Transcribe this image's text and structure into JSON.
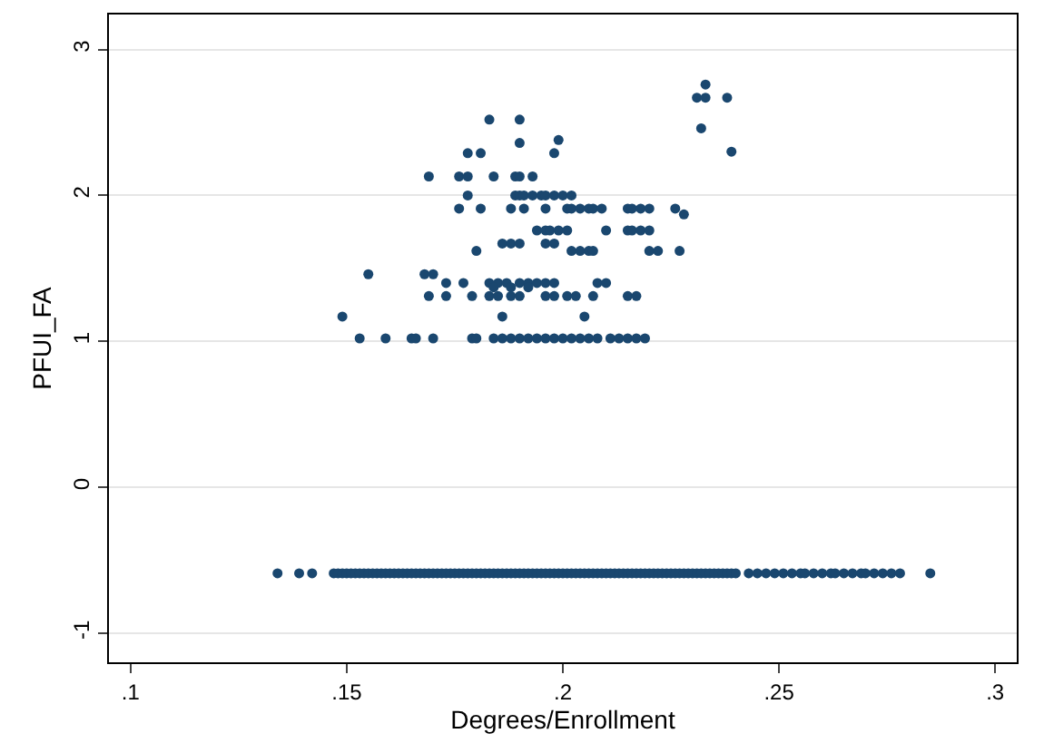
{
  "chart_data": {
    "type": "scatter",
    "xlabel": "Degrees/Enrollment",
    "ylabel": "PFUI_FA",
    "xlim": [
      0.095,
      0.305
    ],
    "ylim": [
      -1.2,
      3.24
    ],
    "xticks": [
      {
        "value": 0.1,
        "label": ".1"
      },
      {
        "value": 0.15,
        "label": ".15"
      },
      {
        "value": 0.2,
        "label": ".2"
      },
      {
        "value": 0.25,
        "label": ".25"
      },
      {
        "value": 0.3,
        "label": ".3"
      }
    ],
    "yticks": [
      -1,
      0,
      1,
      2,
      3
    ],
    "grid": "y",
    "marker": "circle",
    "series": [
      {
        "color": "#1a476f",
        "x": [
          0.183,
          0.19,
          0.178,
          0.181,
          0.198,
          0.239,
          0.19,
          0.199,
          0.233,
          0.231,
          0.233,
          0.238,
          0.232,
          0.169,
          0.176,
          0.178,
          0.184,
          0.189,
          0.19,
          0.193,
          0.178,
          0.189,
          0.19,
          0.191,
          0.193,
          0.195,
          0.196,
          0.198,
          0.2,
          0.202,
          0.176,
          0.181,
          0.188,
          0.191,
          0.196,
          0.201,
          0.202,
          0.204,
          0.206,
          0.207,
          0.209,
          0.215,
          0.216,
          0.218,
          0.22,
          0.226,
          0.228,
          0.194,
          0.196,
          0.197,
          0.199,
          0.201,
          0.21,
          0.215,
          0.216,
          0.218,
          0.22,
          0.186,
          0.188,
          0.19,
          0.196,
          0.198,
          0.18,
          0.202,
          0.204,
          0.206,
          0.207,
          0.22,
          0.222,
          0.227,
          0.155,
          0.168,
          0.17,
          0.173,
          0.177,
          0.183,
          0.185,
          0.187,
          0.19,
          0.192,
          0.194,
          0.196,
          0.198,
          0.208,
          0.21,
          0.184,
          0.188,
          0.192,
          0.169,
          0.173,
          0.179,
          0.183,
          0.185,
          0.188,
          0.19,
          0.196,
          0.198,
          0.201,
          0.203,
          0.207,
          0.215,
          0.217,
          0.149,
          0.186,
          0.205,
          0.153,
          0.159,
          0.165,
          0.166,
          0.17,
          0.179,
          0.18,
          0.184,
          0.186,
          0.188,
          0.19,
          0.192,
          0.194,
          0.196,
          0.198,
          0.2,
          0.202,
          0.204,
          0.206,
          0.208,
          0.211,
          0.213,
          0.215,
          0.217,
          0.219,
          0.134,
          0.139,
          0.142,
          0.147,
          0.148,
          0.149,
          0.15,
          0.151,
          0.152,
          0.153,
          0.154,
          0.155,
          0.156,
          0.157,
          0.158,
          0.159,
          0.16,
          0.161,
          0.162,
          0.163,
          0.164,
          0.165,
          0.166,
          0.167,
          0.168,
          0.169,
          0.17,
          0.171,
          0.172,
          0.173,
          0.174,
          0.175,
          0.176,
          0.177,
          0.178,
          0.179,
          0.18,
          0.181,
          0.182,
          0.183,
          0.184,
          0.185,
          0.186,
          0.187,
          0.188,
          0.189,
          0.19,
          0.191,
          0.192,
          0.193,
          0.194,
          0.195,
          0.196,
          0.197,
          0.198,
          0.199,
          0.2,
          0.201,
          0.202,
          0.203,
          0.204,
          0.205,
          0.206,
          0.207,
          0.208,
          0.209,
          0.21,
          0.211,
          0.212,
          0.213,
          0.214,
          0.215,
          0.216,
          0.217,
          0.218,
          0.219,
          0.22,
          0.221,
          0.222,
          0.223,
          0.224,
          0.225,
          0.226,
          0.227,
          0.228,
          0.229,
          0.23,
          0.231,
          0.232,
          0.233,
          0.234,
          0.235,
          0.236,
          0.237,
          0.238,
          0.239,
          0.24,
          0.243,
          0.245,
          0.247,
          0.249,
          0.251,
          0.253,
          0.255,
          0.256,
          0.258,
          0.26,
          0.262,
          0.263,
          0.265,
          0.267,
          0.269,
          0.27,
          0.272,
          0.274,
          0.276,
          0.278,
          0.285
        ],
        "values": [
          2.52,
          2.52,
          2.29,
          2.29,
          2.29,
          2.3,
          2.36,
          2.38,
          2.76,
          2.67,
          2.67,
          2.67,
          2.46,
          2.13,
          2.13,
          2.13,
          2.13,
          2.13,
          2.13,
          2.13,
          2.0,
          2.0,
          2.0,
          2.0,
          2.0,
          2.0,
          2.0,
          2.0,
          2.0,
          2.0,
          1.91,
          1.91,
          1.91,
          1.91,
          1.91,
          1.91,
          1.91,
          1.91,
          1.91,
          1.91,
          1.91,
          1.91,
          1.91,
          1.91,
          1.91,
          1.91,
          1.87,
          1.76,
          1.76,
          1.76,
          1.76,
          1.76,
          1.76,
          1.76,
          1.76,
          1.76,
          1.76,
          1.67,
          1.67,
          1.67,
          1.67,
          1.67,
          1.62,
          1.62,
          1.62,
          1.62,
          1.62,
          1.62,
          1.62,
          1.62,
          1.46,
          1.46,
          1.46,
          1.4,
          1.4,
          1.4,
          1.4,
          1.4,
          1.4,
          1.4,
          1.4,
          1.4,
          1.4,
          1.4,
          1.4,
          1.37,
          1.37,
          1.37,
          1.31,
          1.31,
          1.31,
          1.31,
          1.31,
          1.31,
          1.31,
          1.31,
          1.31,
          1.31,
          1.31,
          1.31,
          1.31,
          1.31,
          1.17,
          1.17,
          1.17,
          1.02,
          1.02,
          1.02,
          1.02,
          1.02,
          1.02,
          1.02,
          1.02,
          1.02,
          1.02,
          1.02,
          1.02,
          1.02,
          1.02,
          1.02,
          1.02,
          1.02,
          1.02,
          1.02,
          1.02,
          1.02,
          1.02,
          1.02,
          1.02,
          1.02,
          -0.59,
          -0.59,
          -0.59,
          -0.59,
          -0.59,
          -0.59,
          -0.59,
          -0.59,
          -0.59,
          -0.59,
          -0.59,
          -0.59,
          -0.59,
          -0.59,
          -0.59,
          -0.59,
          -0.59,
          -0.59,
          -0.59,
          -0.59,
          -0.59,
          -0.59,
          -0.59,
          -0.59,
          -0.59,
          -0.59,
          -0.59,
          -0.59,
          -0.59,
          -0.59,
          -0.59,
          -0.59,
          -0.59,
          -0.59,
          -0.59,
          -0.59,
          -0.59,
          -0.59,
          -0.59,
          -0.59,
          -0.59,
          -0.59,
          -0.59,
          -0.59,
          -0.59,
          -0.59,
          -0.59,
          -0.59,
          -0.59,
          -0.59,
          -0.59,
          -0.59,
          -0.59,
          -0.59,
          -0.59,
          -0.59,
          -0.59,
          -0.59,
          -0.59,
          -0.59,
          -0.59,
          -0.59,
          -0.59,
          -0.59,
          -0.59,
          -0.59,
          -0.59,
          -0.59,
          -0.59,
          -0.59,
          -0.59,
          -0.59,
          -0.59,
          -0.59,
          -0.59,
          -0.59,
          -0.59,
          -0.59,
          -0.59,
          -0.59,
          -0.59,
          -0.59,
          -0.59,
          -0.59,
          -0.59,
          -0.59,
          -0.59,
          -0.59,
          -0.59,
          -0.59,
          -0.59,
          -0.59,
          -0.59,
          -0.59,
          -0.59,
          -0.59,
          -0.59,
          -0.59,
          -0.59,
          -0.59,
          -0.59,
          -0.59,
          -0.59,
          -0.59,
          -0.59,
          -0.59,
          -0.59,
          -0.59,
          -0.59,
          -0.59,
          -0.59,
          -0.59,
          -0.59,
          -0.59,
          -0.59,
          -0.59,
          -0.59,
          -0.59
        ]
      }
    ]
  }
}
